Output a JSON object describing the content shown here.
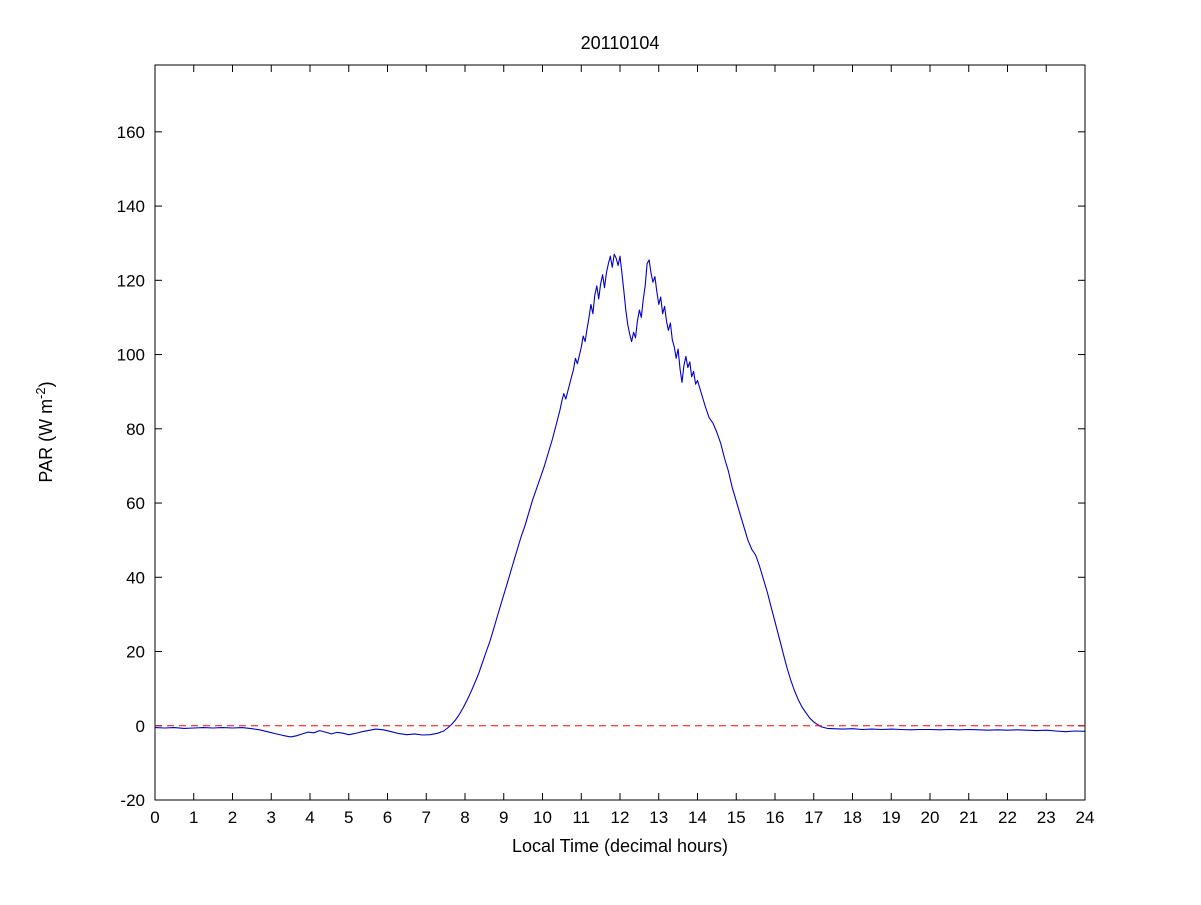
{
  "chart_data": {
    "type": "line",
    "title": "20110104",
    "xlabel": "Local Time (decimal hours)",
    "ylabel": "PAR (W m-2)",
    "ylabel_parts": {
      "pre": "PAR (W m",
      "sup": "-2",
      "post": ")"
    },
    "xlim": [
      0,
      24
    ],
    "ylim": [
      -20,
      178
    ],
    "xticks": [
      0,
      1,
      2,
      3,
      4,
      5,
      6,
      7,
      8,
      9,
      10,
      11,
      12,
      13,
      14,
      15,
      16,
      17,
      18,
      19,
      20,
      21,
      22,
      23,
      24
    ],
    "yticks": [
      -20,
      0,
      20,
      40,
      60,
      80,
      100,
      120,
      140,
      160
    ],
    "grid": false,
    "legend": null,
    "line_color": "#0000cc",
    "reference_line": {
      "y": 0,
      "color": "#ff0000",
      "style": "dashed"
    },
    "series": [
      {
        "name": "PAR",
        "color": "#0000cc",
        "points": [
          [
            0,
            -0.5
          ],
          [
            0.25,
            -0.6
          ],
          [
            0.5,
            -0.5
          ],
          [
            0.75,
            -0.7
          ],
          [
            1,
            -0.6
          ],
          [
            1.25,
            -0.5
          ],
          [
            1.5,
            -0.6
          ],
          [
            1.75,
            -0.5
          ],
          [
            2,
            -0.6
          ],
          [
            2.25,
            -0.5
          ],
          [
            2.5,
            -0.8
          ],
          [
            2.7,
            -1.1
          ],
          [
            2.9,
            -1.6
          ],
          [
            3.1,
            -2.1
          ],
          [
            3.3,
            -2.6
          ],
          [
            3.5,
            -3
          ],
          [
            3.65,
            -2.7
          ],
          [
            3.8,
            -2.2
          ],
          [
            3.95,
            -1.7
          ],
          [
            4.1,
            -1.9
          ],
          [
            4.25,
            -1.3
          ],
          [
            4.4,
            -1.7
          ],
          [
            4.55,
            -2.2
          ],
          [
            4.7,
            -1.8
          ],
          [
            4.85,
            -2
          ],
          [
            5,
            -2.4
          ],
          [
            5.15,
            -2.1
          ],
          [
            5.3,
            -1.7
          ],
          [
            5.5,
            -1.3
          ],
          [
            5.7,
            -0.9
          ],
          [
            5.9,
            -1.1
          ],
          [
            6.1,
            -1.6
          ],
          [
            6.3,
            -2.1
          ],
          [
            6.5,
            -2.4
          ],
          [
            6.7,
            -2.2
          ],
          [
            6.9,
            -2.5
          ],
          [
            7.1,
            -2.4
          ],
          [
            7.3,
            -2
          ],
          [
            7.45,
            -1.4
          ],
          [
            7.55,
            -0.6
          ],
          [
            7.65,
            0.3
          ],
          [
            7.75,
            1.5
          ],
          [
            7.85,
            3
          ],
          [
            7.95,
            4.8
          ],
          [
            8.05,
            6.8
          ],
          [
            8.15,
            9
          ],
          [
            8.25,
            11.5
          ],
          [
            8.35,
            14
          ],
          [
            8.45,
            17
          ],
          [
            8.55,
            20
          ],
          [
            8.65,
            23
          ],
          [
            8.75,
            26.5
          ],
          [
            8.85,
            30
          ],
          [
            8.95,
            33.5
          ],
          [
            9.05,
            37
          ],
          [
            9.15,
            40.5
          ],
          [
            9.25,
            44
          ],
          [
            9.35,
            47.5
          ],
          [
            9.45,
            51
          ],
          [
            9.55,
            54
          ],
          [
            9.65,
            57.5
          ],
          [
            9.75,
            61
          ],
          [
            9.85,
            64
          ],
          [
            9.95,
            67
          ],
          [
            10.05,
            70
          ],
          [
            10.15,
            73.5
          ],
          [
            10.25,
            77
          ],
          [
            10.35,
            81
          ],
          [
            10.45,
            85
          ],
          [
            10.5,
            87.5
          ],
          [
            10.55,
            89.5
          ],
          [
            10.6,
            88
          ],
          [
            10.7,
            92
          ],
          [
            10.8,
            96
          ],
          [
            10.85,
            99
          ],
          [
            10.9,
            97.5
          ],
          [
            11,
            102
          ],
          [
            11.05,
            105
          ],
          [
            11.1,
            103.5
          ],
          [
            11.15,
            107
          ],
          [
            11.2,
            110
          ],
          [
            11.25,
            113.5
          ],
          [
            11.3,
            111
          ],
          [
            11.35,
            116
          ],
          [
            11.4,
            118.5
          ],
          [
            11.45,
            115
          ],
          [
            11.5,
            119
          ],
          [
            11.55,
            121.5
          ],
          [
            11.6,
            118
          ],
          [
            11.65,
            122
          ],
          [
            11.7,
            124.5
          ],
          [
            11.75,
            126.5
          ],
          [
            11.8,
            123.5
          ],
          [
            11.85,
            127
          ],
          [
            11.9,
            126
          ],
          [
            11.95,
            124
          ],
          [
            12,
            126.5
          ],
          [
            12.05,
            122
          ],
          [
            12.1,
            117
          ],
          [
            12.15,
            112
          ],
          [
            12.2,
            108
          ],
          [
            12.25,
            105.5
          ],
          [
            12.3,
            103.5
          ],
          [
            12.35,
            106
          ],
          [
            12.4,
            104.5
          ],
          [
            12.45,
            109
          ],
          [
            12.5,
            112
          ],
          [
            12.55,
            110
          ],
          [
            12.6,
            115
          ],
          [
            12.65,
            118.5
          ],
          [
            12.7,
            124.5
          ],
          [
            12.75,
            125.5
          ],
          [
            12.8,
            122
          ],
          [
            12.85,
            119.5
          ],
          [
            12.9,
            121
          ],
          [
            12.95,
            117
          ],
          [
            13,
            113.5
          ],
          [
            13.05,
            115.5
          ],
          [
            13.1,
            111
          ],
          [
            13.15,
            113
          ],
          [
            13.2,
            109
          ],
          [
            13.25,
            106.5
          ],
          [
            13.3,
            108.5
          ],
          [
            13.35,
            104
          ],
          [
            13.4,
            102
          ],
          [
            13.45,
            99
          ],
          [
            13.5,
            101.5
          ],
          [
            13.55,
            96
          ],
          [
            13.6,
            92.5
          ],
          [
            13.65,
            97
          ],
          [
            13.7,
            99.5
          ],
          [
            13.75,
            96.5
          ],
          [
            13.8,
            98
          ],
          [
            13.85,
            94
          ],
          [
            13.9,
            95.5
          ],
          [
            13.95,
            92
          ],
          [
            14,
            93
          ],
          [
            14.1,
            89.5
          ],
          [
            14.2,
            86
          ],
          [
            14.3,
            83
          ],
          [
            14.4,
            81.5
          ],
          [
            14.5,
            79
          ],
          [
            14.6,
            76
          ],
          [
            14.7,
            72
          ],
          [
            14.8,
            68.5
          ],
          [
            14.9,
            64
          ],
          [
            15,
            60.5
          ],
          [
            15.1,
            57
          ],
          [
            15.2,
            53.5
          ],
          [
            15.3,
            50
          ],
          [
            15.4,
            47.5
          ],
          [
            15.5,
            46
          ],
          [
            15.6,
            43
          ],
          [
            15.7,
            39.5
          ],
          [
            15.8,
            36
          ],
          [
            15.9,
            32
          ],
          [
            16,
            28
          ],
          [
            16.1,
            24
          ],
          [
            16.2,
            20
          ],
          [
            16.3,
            16
          ],
          [
            16.4,
            12.5
          ],
          [
            16.5,
            9.5
          ],
          [
            16.6,
            7
          ],
          [
            16.7,
            5
          ],
          [
            16.8,
            3.5
          ],
          [
            16.9,
            2
          ],
          [
            17,
            1
          ],
          [
            17.1,
            0.3
          ],
          [
            17.2,
            -0.3
          ],
          [
            17.35,
            -0.7
          ],
          [
            17.5,
            -0.8
          ],
          [
            17.75,
            -0.9
          ],
          [
            18,
            -0.8
          ],
          [
            18.25,
            -1
          ],
          [
            18.5,
            -0.9
          ],
          [
            18.75,
            -1
          ],
          [
            19,
            -0.9
          ],
          [
            19.25,
            -1
          ],
          [
            19.5,
            -1.1
          ],
          [
            19.75,
            -1
          ],
          [
            20,
            -1
          ],
          [
            20.25,
            -1.1
          ],
          [
            20.5,
            -1
          ],
          [
            20.75,
            -1.1
          ],
          [
            21,
            -1
          ],
          [
            21.25,
            -1.1
          ],
          [
            21.5,
            -1.2
          ],
          [
            21.75,
            -1.1
          ],
          [
            22,
            -1.2
          ],
          [
            22.25,
            -1.1
          ],
          [
            22.5,
            -1.2
          ],
          [
            22.75,
            -1.3
          ],
          [
            23,
            -1.2
          ],
          [
            23.25,
            -1.4
          ],
          [
            23.5,
            -1.6
          ],
          [
            23.75,
            -1.4
          ],
          [
            24,
            -1.5
          ]
        ]
      }
    ]
  }
}
